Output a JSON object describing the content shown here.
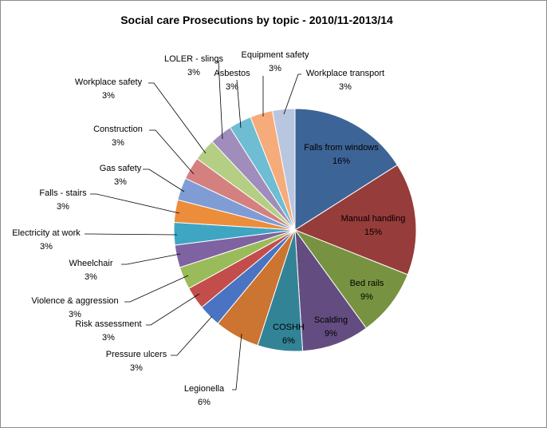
{
  "chart_data": {
    "type": "pie",
    "title": "Social care Prosecutions by topic  - 2010/11-2013/14",
    "slices": [
      {
        "label": "Falls from windows",
        "value": 16,
        "value_label": "16%",
        "color": "#3D6496"
      },
      {
        "label": "Manual handling",
        "value": 15,
        "value_label": "15%",
        "color": "#963C3A"
      },
      {
        "label": "Bed rails",
        "value": 9,
        "value_label": "9%",
        "color": "#779341"
      },
      {
        "label": "Scalding",
        "value": 9,
        "value_label": "9%",
        "color": "#634D80"
      },
      {
        "label": "COSHH",
        "value": 6,
        "value_label": "6%",
        "color": "#338397"
      },
      {
        "label": "Legionella",
        "value": 6,
        "value_label": "6%",
        "color": "#CC7431"
      },
      {
        "label": "Pressure ulcers",
        "value": 3,
        "value_label": "3%",
        "color": "#4A74C2"
      },
      {
        "label": "Risk assessment",
        "value": 3,
        "value_label": "3%",
        "color": "#C34D4A"
      },
      {
        "label": "Violence & aggression",
        "value": 3,
        "value_label": "3%",
        "color": "#9ABB59"
      },
      {
        "label": "Wheelchair",
        "value": 3,
        "value_label": "3%",
        "color": "#7E62A2"
      },
      {
        "label": "Electricity at work",
        "value": 3,
        "value_label": "3%",
        "color": "#3EA6C2"
      },
      {
        "label": "Falls - stairs",
        "value": 3,
        "value_label": "3%",
        "color": "#EC8D3B"
      },
      {
        "label": "Gas safety",
        "value": 3,
        "value_label": "3%",
        "color": "#7F9CD5"
      },
      {
        "label": "Construction",
        "value": 3,
        "value_label": "3%",
        "color": "#D4807F"
      },
      {
        "label": "Workplace safety",
        "value": 3,
        "value_label": "3%",
        "color": "#B4CF84"
      },
      {
        "label": "LOLER - slings",
        "value": 3,
        "value_label": "3%",
        "color": "#A08DBB"
      },
      {
        "label": "Asbestos",
        "value": 3,
        "value_label": "3%",
        "color": "#6EBDD3"
      },
      {
        "label": "Equipment  safety",
        "value": 3,
        "value_label": "3%",
        "color": "#F6AB7A"
      },
      {
        "label": "Workplace transport",
        "value": 3,
        "value_label": "3%",
        "color": "#B8C6E0"
      }
    ]
  }
}
